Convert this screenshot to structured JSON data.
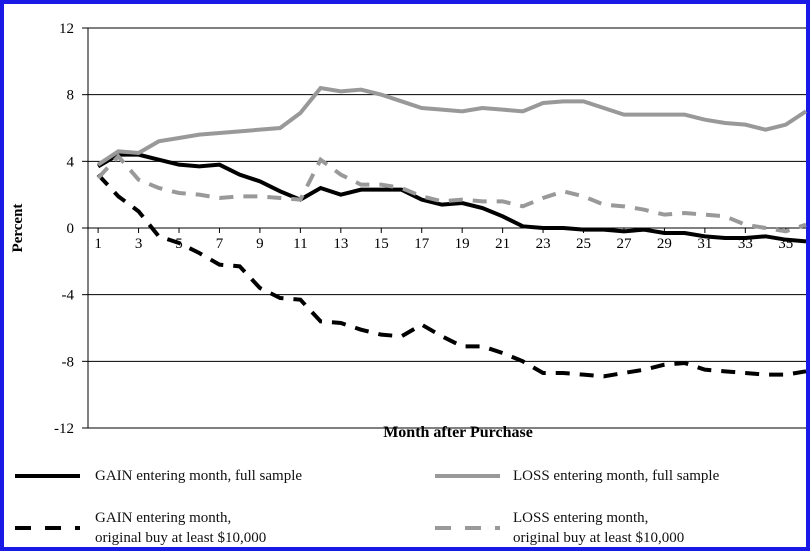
{
  "chart_data": {
    "type": "line",
    "x_label": "Month after Purchase",
    "y_label": "Percent",
    "x": [
      1,
      2,
      3,
      4,
      5,
      6,
      7,
      8,
      9,
      10,
      11,
      12,
      13,
      14,
      15,
      16,
      17,
      18,
      19,
      20,
      21,
      22,
      23,
      24,
      25,
      26,
      27,
      28,
      29,
      30,
      31,
      32,
      33,
      34,
      35,
      36
    ],
    "xlim": [
      0.5,
      36
    ],
    "xticks": [
      1,
      3,
      5,
      7,
      9,
      11,
      13,
      15,
      17,
      19,
      21,
      23,
      25,
      27,
      29,
      31,
      33,
      35
    ],
    "ylim": [
      -12,
      12
    ],
    "yticks": [
      -12,
      -8,
      -4,
      0,
      4,
      8,
      12
    ],
    "grid": true,
    "series": [
      {
        "name": "GAIN entering month, full sample",
        "color": "#000000",
        "dash": "solid",
        "values": [
          3.7,
          4.4,
          4.4,
          4.1,
          3.8,
          3.7,
          3.8,
          3.2,
          2.8,
          2.2,
          1.7,
          2.4,
          2.0,
          2.3,
          2.3,
          2.3,
          1.7,
          1.4,
          1.5,
          1.2,
          0.7,
          0.1,
          0.0,
          0.0,
          -0.1,
          -0.1,
          -0.2,
          -0.1,
          -0.3,
          -0.3,
          -0.5,
          -0.6,
          -0.6,
          -0.5,
          -0.7,
          -0.8
        ]
      },
      {
        "name": "LOSS entering month, full sample",
        "color": "#999999",
        "dash": "solid",
        "values": [
          3.8,
          4.6,
          4.5,
          5.2,
          5.4,
          5.6,
          5.7,
          5.8,
          5.9,
          6.0,
          6.9,
          8.4,
          8.2,
          8.3,
          8.0,
          7.6,
          7.2,
          7.1,
          7.0,
          7.2,
          7.1,
          7.0,
          7.5,
          7.6,
          7.6,
          7.2,
          6.8,
          6.8,
          6.8,
          6.8,
          6.5,
          6.3,
          6.2,
          5.9,
          6.2,
          7.0
        ]
      },
      {
        "name": "GAIN entering month,\noriginal buy at least $10,000",
        "color": "#000000",
        "dash": "dashed",
        "values": [
          3.2,
          1.9,
          1.0,
          -0.5,
          -0.9,
          -1.5,
          -2.2,
          -2.3,
          -3.6,
          -4.2,
          -4.3,
          -5.6,
          -5.7,
          -6.1,
          -6.4,
          -6.5,
          -5.8,
          -6.5,
          -7.1,
          -7.1,
          -7.5,
          -8.0,
          -8.7,
          -8.7,
          -8.8,
          -8.9,
          -8.7,
          -8.5,
          -8.2,
          -8.1,
          -8.5,
          -8.6,
          -8.7,
          -8.8,
          -8.8,
          -8.6
        ]
      },
      {
        "name": "LOSS entering month,\noriginal buy at least $10,000",
        "color": "#999999",
        "dash": "dashed",
        "values": [
          3.0,
          4.3,
          2.9,
          2.4,
          2.1,
          2.0,
          1.8,
          1.9,
          1.9,
          1.8,
          1.7,
          4.1,
          3.2,
          2.6,
          2.6,
          2.4,
          1.9,
          1.6,
          1.7,
          1.6,
          1.6,
          1.3,
          1.8,
          2.2,
          1.9,
          1.4,
          1.3,
          1.1,
          0.8,
          0.9,
          0.8,
          0.7,
          0.2,
          0.0,
          -0.2,
          0.2
        ]
      }
    ]
  }
}
